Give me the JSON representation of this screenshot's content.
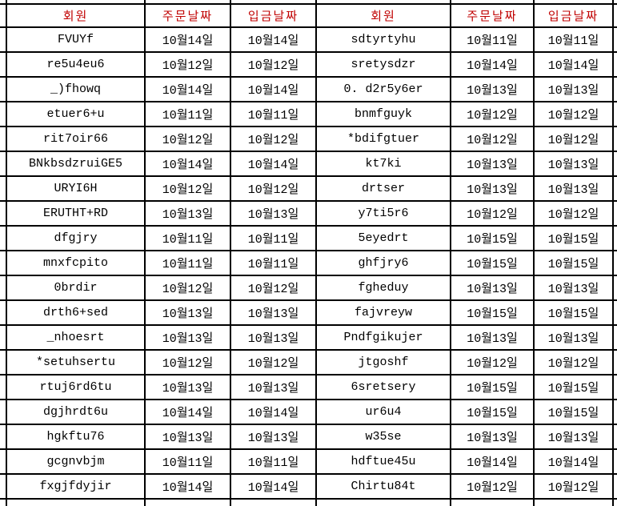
{
  "table": {
    "header": {
      "member": "회원",
      "order_date": "주문날짜",
      "deposit_date": "입금날짜"
    },
    "left_rows": [
      {
        "member": "FVUYf",
        "order_date": "10월14일",
        "deposit_date": "10월14일"
      },
      {
        "member": "re5u4eu6",
        "order_date": "10월12일",
        "deposit_date": "10월12일"
      },
      {
        "member": "_)fhowq",
        "order_date": "10월14일",
        "deposit_date": "10월14일"
      },
      {
        "member": "etuer6+u",
        "order_date": "10월11일",
        "deposit_date": "10월11일"
      },
      {
        "member": "rit7oir66",
        "order_date": "10월12일",
        "deposit_date": "10월12일"
      },
      {
        "member": "BNkbsdzruiGE5",
        "order_date": "10월14일",
        "deposit_date": "10월14일"
      },
      {
        "member": "URYI6H",
        "order_date": "10월12일",
        "deposit_date": "10월12일"
      },
      {
        "member": "ERUTHT+RD",
        "order_date": "10월13일",
        "deposit_date": "10월13일"
      },
      {
        "member": "dfgjry",
        "order_date": "10월11일",
        "deposit_date": "10월11일"
      },
      {
        "member": "mnxfcpito",
        "order_date": "10월11일",
        "deposit_date": "10월11일"
      },
      {
        "member": "0brdir",
        "order_date": "10월12일",
        "deposit_date": "10월12일"
      },
      {
        "member": "drth6+sed",
        "order_date": "10월13일",
        "deposit_date": "10월13일"
      },
      {
        "member": "_nhoesrt",
        "order_date": "10월13일",
        "deposit_date": "10월13일"
      },
      {
        "member": "*setuhsertu",
        "order_date": "10월12일",
        "deposit_date": "10월12일"
      },
      {
        "member": "rtuj6rd6tu",
        "order_date": "10월13일",
        "deposit_date": "10월13일"
      },
      {
        "member": "dgjhrdt6u",
        "order_date": "10월14일",
        "deposit_date": "10월14일"
      },
      {
        "member": "hgkftu76",
        "order_date": "10월13일",
        "deposit_date": "10월13일"
      },
      {
        "member": "gcgnvbjm",
        "order_date": "10월11일",
        "deposit_date": "10월11일"
      },
      {
        "member": "fxgjfdyjir",
        "order_date": "10월14일",
        "deposit_date": "10월14일"
      }
    ],
    "right_rows": [
      {
        "member": "sdtyrtyhu",
        "order_date": "10월11일",
        "deposit_date": "10월11일"
      },
      {
        "member": "sretysdzr",
        "order_date": "10월14일",
        "deposit_date": "10월14일"
      },
      {
        "member": "0. d2r5y6er",
        "order_date": "10월13일",
        "deposit_date": "10월13일"
      },
      {
        "member": "bnmfguyk",
        "order_date": "10월12일",
        "deposit_date": "10월12일"
      },
      {
        "member": "*bdifgtuer",
        "order_date": "10월12일",
        "deposit_date": "10월12일"
      },
      {
        "member": "kt7ki",
        "order_date": "10월13일",
        "deposit_date": "10월13일"
      },
      {
        "member": "drtser",
        "order_date": "10월13일",
        "deposit_date": "10월13일"
      },
      {
        "member": "y7ti5r6",
        "order_date": "10월12일",
        "deposit_date": "10월12일"
      },
      {
        "member": "5eyedrt",
        "order_date": "10월15일",
        "deposit_date": "10월15일"
      },
      {
        "member": "ghfjry6",
        "order_date": "10월15일",
        "deposit_date": "10월15일"
      },
      {
        "member": "fgheduy",
        "order_date": "10월13일",
        "deposit_date": "10월13일"
      },
      {
        "member": "fajvreyw",
        "order_date": "10월15일",
        "deposit_date": "10월15일"
      },
      {
        "member": "Pndfgikujer",
        "order_date": "10월13일",
        "deposit_date": "10월13일"
      },
      {
        "member": "jtgoshf",
        "order_date": "10월12일",
        "deposit_date": "10월12일"
      },
      {
        "member": "6sretsery",
        "order_date": "10월15일",
        "deposit_date": "10월15일"
      },
      {
        "member": "ur6u4",
        "order_date": "10월15일",
        "deposit_date": "10월15일"
      },
      {
        "member": "w35se",
        "order_date": "10월13일",
        "deposit_date": "10월13일"
      },
      {
        "member": "hdftue45u",
        "order_date": "10월14일",
        "deposit_date": "10월14일"
      },
      {
        "member": "Chirtu84t",
        "order_date": "10월12일",
        "deposit_date": "10월12일"
      }
    ]
  },
  "colors": {
    "header_text": "#c00000",
    "grid_line": "#000000",
    "cell_background": "#ffffff"
  }
}
